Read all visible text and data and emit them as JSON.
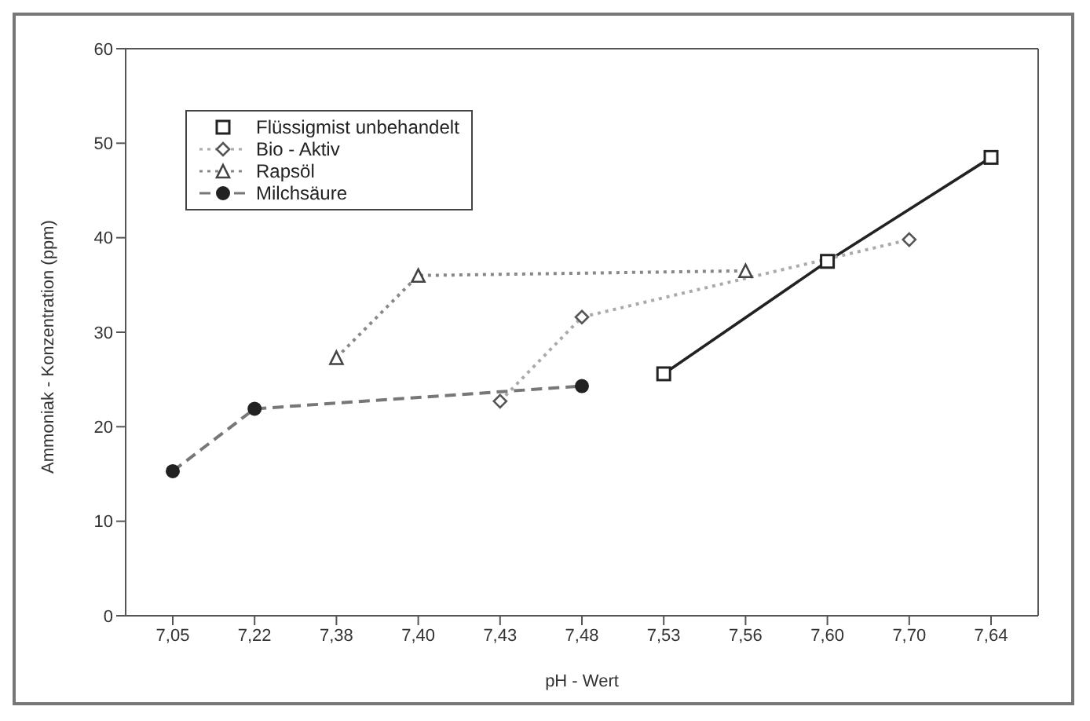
{
  "chart_data": {
    "type": "line",
    "xlabel": "pH - Wert",
    "ylabel": "Ammoniak - Konzentration (ppm)",
    "categories": [
      "7,05",
      "7,22",
      "7,38",
      "7,40",
      "7,43",
      "7,48",
      "7,53",
      "7,56",
      "7,60",
      "7,70",
      "7,64"
    ],
    "series": [
      {
        "name": "Flüssigmist unbehandelt",
        "color": "#222222",
        "marker": "square",
        "line_style": "solid",
        "values": [
          null,
          null,
          null,
          null,
          null,
          null,
          25.6,
          null,
          37.5,
          null,
          48.5
        ]
      },
      {
        "name": "Bio - Aktiv",
        "color": "#aaaaaa",
        "marker": "diamond",
        "line_style": "dotted",
        "values": [
          null,
          null,
          null,
          null,
          22.7,
          31.6,
          null,
          null,
          null,
          39.8,
          null
        ]
      },
      {
        "name": "Rapsöl",
        "color": "#888888",
        "marker": "triangle",
        "line_style": "dotted",
        "values": [
          null,
          null,
          27.3,
          36,
          null,
          null,
          null,
          36.5,
          null,
          null,
          null
        ]
      },
      {
        "name": "Milchsäure",
        "color": "#777777",
        "marker": "circle",
        "line_style": "dashed",
        "values": [
          15.3,
          21.9,
          null,
          null,
          null,
          24.3,
          null,
          null,
          null,
          null,
          null
        ]
      }
    ],
    "ylim": [
      0,
      60
    ],
    "yticks": [
      0,
      10,
      20,
      30,
      40,
      50,
      60
    ],
    "grid": false,
    "legend": "top left"
  }
}
